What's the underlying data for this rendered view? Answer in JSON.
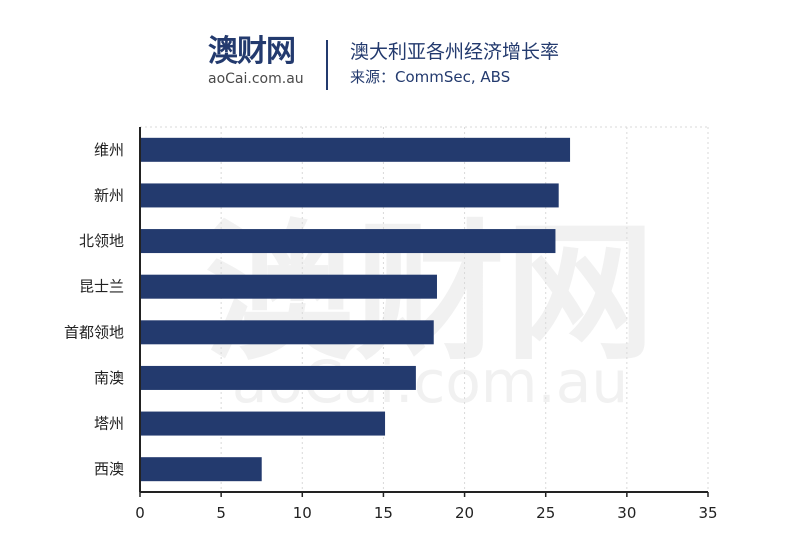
{
  "header": {
    "logo_cn": "澳财网",
    "logo_url": "aoCai.com.au",
    "title": "澳大利亚各州经济增长率",
    "source": "来源：CommSec, ABS"
  },
  "watermark": {
    "cn": "澳财网",
    "url": "aoCai.com.au"
  },
  "colors": {
    "bar": "#233a6e",
    "axis": "#222222",
    "grid": "#d9d9d9",
    "accent": "#d0202e"
  },
  "chart_data": {
    "type": "bar",
    "orientation": "horizontal",
    "categories": [
      "维州",
      "新州",
      "北领地",
      "昆士兰",
      "首都领地",
      "南澳",
      "塔州",
      "西澳"
    ],
    "values": [
      26.5,
      25.8,
      25.6,
      18.3,
      18.1,
      17.0,
      15.1,
      7.5
    ],
    "xlim": [
      0,
      35
    ],
    "xticks": [
      0,
      5,
      10,
      15,
      20,
      25,
      30,
      35
    ],
    "grid": "vertical dashed",
    "legend": "none"
  }
}
